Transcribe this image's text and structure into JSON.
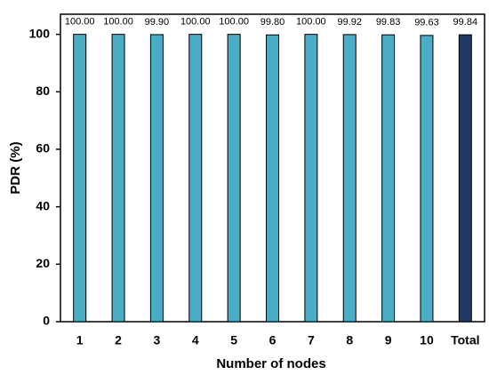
{
  "chart_data": {
    "type": "bar",
    "x_label": "Number of nodes",
    "y_label": "PDR (%)",
    "categories": [
      "1",
      "2",
      "3",
      "4",
      "5",
      "6",
      "7",
      "8",
      "9",
      "10",
      "Total"
    ],
    "values": [
      100,
      100,
      99.9,
      100,
      100,
      99.8,
      100,
      99.92,
      99.83,
      99.63,
      99.84
    ],
    "value_labels": [
      "100.00",
      "100.00",
      "99.90",
      "100.00",
      "100.00",
      "99.80",
      "100.00",
      "99.92",
      "99.83",
      "99.63",
      "99.84"
    ],
    "colors": [
      "#4bacc6",
      "#4bacc6",
      "#4bacc6",
      "#4bacc6",
      "#4bacc6",
      "#4bacc6",
      "#4bacc6",
      "#4bacc6",
      "#4bacc6",
      "#4bacc6",
      "#1f3864"
    ],
    "ylim": [
      0,
      107
    ],
    "yticks": [
      0,
      20,
      40,
      60,
      80,
      100
    ],
    "grid": false
  }
}
